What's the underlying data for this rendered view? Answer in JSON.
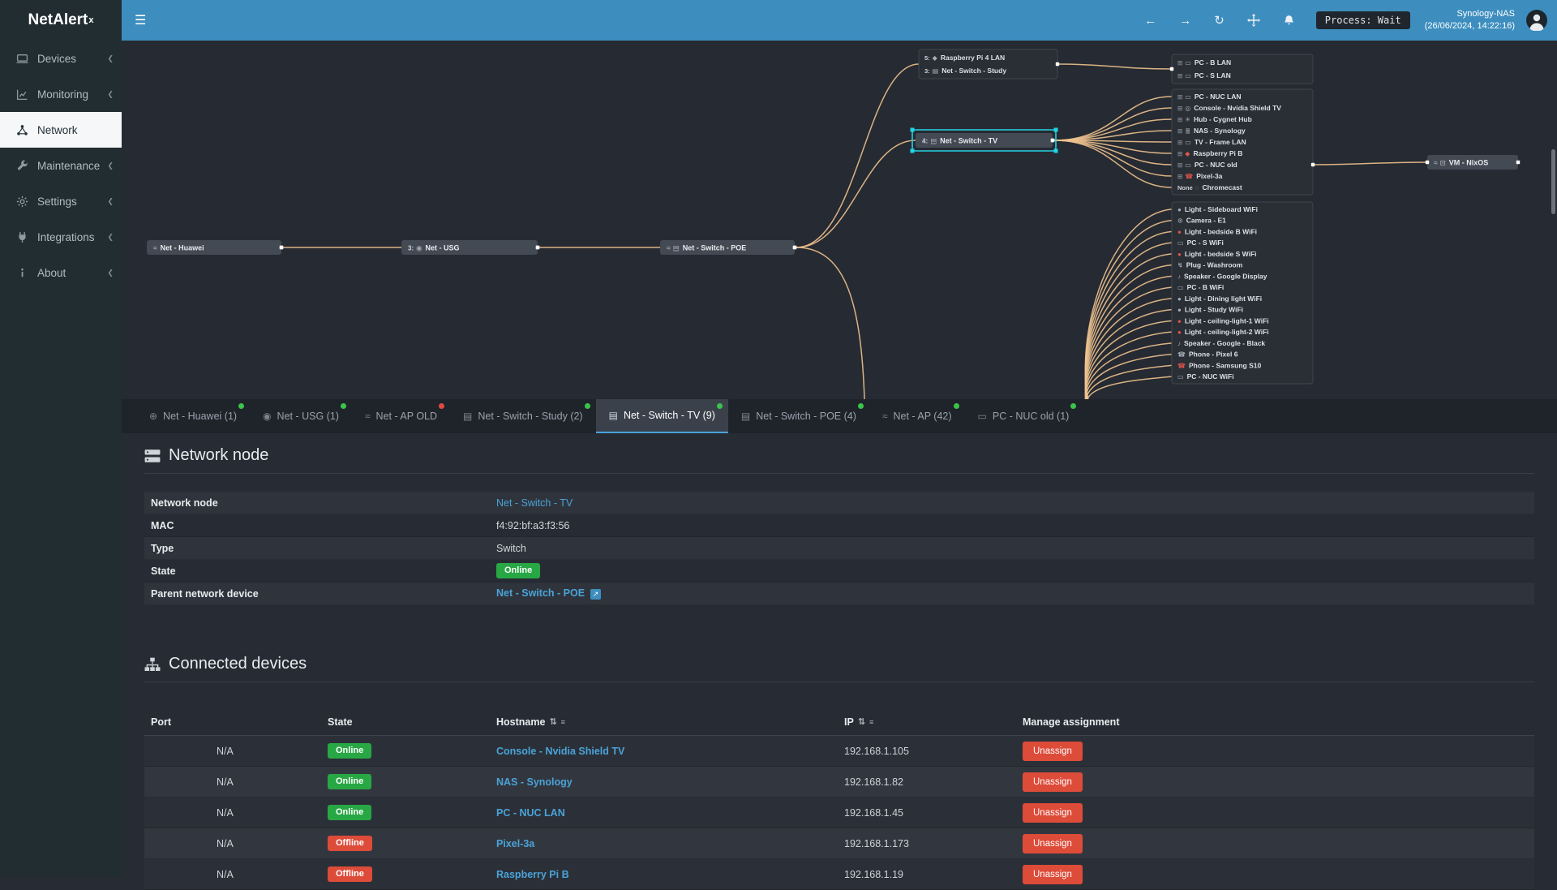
{
  "colors": {
    "accent": "#3d8ebf",
    "online": "#28a745",
    "offline": "#dd4b39",
    "link": "#4aa3d8",
    "edge": "#eec28e",
    "selection": "#22d3e5",
    "dot_green": "#3bc449",
    "dot_red": "#e04b3f"
  },
  "header": {
    "brand": "NetAlert",
    "brand_sup": "x",
    "menu_icon": "hamburger-icon",
    "nav_icons": [
      "arrow-left-icon",
      "arrow-right-icon",
      "refresh-icon",
      "move-icon",
      "bell-icon"
    ],
    "process_label": "Process: Wait",
    "host_name": "Synology-NAS",
    "host_time": "(26/06/2024, 14:22:16)",
    "avatar_icon": "user-avatar-icon"
  },
  "sidebar": {
    "items": [
      {
        "label": "Devices",
        "icon": "devices-icon"
      },
      {
        "label": "Monitoring",
        "icon": "monitoring-icon"
      },
      {
        "label": "Network",
        "icon": "network-icon",
        "active": true
      },
      {
        "label": "Maintenance",
        "icon": "maintenance-icon"
      },
      {
        "label": "Settings",
        "icon": "settings-icon"
      },
      {
        "label": "Integrations",
        "icon": "integrations-icon"
      },
      {
        "label": "About",
        "icon": "about-icon"
      }
    ]
  },
  "topology": {
    "nodes": [
      {
        "id": "huawei",
        "label": "Net - Huawei",
        "icon": "wifi-icon"
      },
      {
        "id": "usg",
        "label": "Net - USG",
        "prefix": "3:",
        "icon": "shield-icon"
      },
      {
        "id": "poe",
        "label": "Net - Switch - POE",
        "icon": "wifi-icon",
        "icon2": "switch-icon"
      },
      {
        "id": "tv",
        "label": "Net - Switch - TV",
        "prefix": "4:",
        "icon": "switch-icon",
        "selected": true
      },
      {
        "id": "nixos",
        "label": "VM - NixOS",
        "icon": "wifi-icon",
        "icon2": "vm-icon"
      }
    ],
    "boxes": [
      {
        "id": "study",
        "rows": [
          {
            "prefix": "5:",
            "icon": "pi-icon",
            "label": "Raspberry Pi 4 LAN"
          },
          {
            "prefix": "3:",
            "icon": "switch-icon",
            "label": "Net - Switch - Study"
          }
        ]
      },
      {
        "id": "pcs",
        "rows": [
          {
            "media": "lan-icon",
            "icon": "pc-icon",
            "label": "PC - B LAN"
          },
          {
            "media": "lan-icon",
            "icon": "pc-icon",
            "label": "PC - S LAN"
          }
        ]
      },
      {
        "id": "tvbox",
        "rows": [
          {
            "media": "lan-icon",
            "icon": "pc-icon",
            "label": "PC - NUC LAN"
          },
          {
            "media": "lan-icon",
            "icon": "console-icon",
            "label": "Console - Nvidia Shield TV"
          },
          {
            "media": "lan-icon",
            "icon": "hub-icon",
            "label": "Hub - Cygnet Hub"
          },
          {
            "media": "lan-icon",
            "icon": "nas-icon",
            "label": "NAS - Synology"
          },
          {
            "media": "lan-icon",
            "icon": "tv-icon",
            "label": "TV - Frame LAN"
          },
          {
            "media": "lan-icon",
            "icon": "pi-icon",
            "label": "Raspberry Pi B",
            "offline": true
          },
          {
            "media": "lan-icon",
            "icon": "pc-icon",
            "label": "PC - NUC old"
          },
          {
            "media": "lan-icon",
            "icon": "phone-icon",
            "label": "Pixel-3a",
            "offline": true
          },
          {
            "prefix": "None",
            "icon": "cast-icon",
            "label": "Chromecast"
          }
        ]
      },
      {
        "id": "wifibox",
        "rows": [
          {
            "icon": "bulb-icon",
            "label": "Light - Sideboard WiFi"
          },
          {
            "icon": "camera-icon",
            "label": "Camera - E1"
          },
          {
            "icon": "bulb-icon",
            "label": "Light - bedside B WiFi",
            "offline": true
          },
          {
            "icon": "pc-icon",
            "label": "PC - S WiFi"
          },
          {
            "icon": "bulb-icon",
            "label": "Light - bedside S WiFi",
            "offline": true
          },
          {
            "icon": "plug-icon",
            "label": "Plug - Washroom"
          },
          {
            "icon": "speaker-icon",
            "label": "Speaker - Google Display"
          },
          {
            "icon": "pc-icon",
            "label": "PC - B WiFi"
          },
          {
            "icon": "bulb-icon",
            "label": "Light - Dining light WiFi"
          },
          {
            "icon": "bulb-icon",
            "label": "Light - Study WiFi"
          },
          {
            "icon": "bulb-icon",
            "label": "Light - ceiling-light-1 WiFi",
            "offline": true
          },
          {
            "icon": "bulb-icon",
            "label": "Light - ceiling-light-2 WiFi",
            "offline": true
          },
          {
            "icon": "speaker-icon",
            "label": "Speaker - Google - Black"
          },
          {
            "icon": "phone-icon",
            "label": "Phone - Pixel 6"
          },
          {
            "icon": "phone-icon",
            "label": "Phone - Samsung S10",
            "offline": true
          },
          {
            "icon": "pc-icon",
            "label": "PC - NUC WiFi"
          }
        ]
      }
    ],
    "edges": [
      {
        "from": "huawei",
        "to": "usg"
      },
      {
        "from": "usg",
        "to": "poe"
      },
      {
        "from": "poe",
        "to": "study"
      },
      {
        "from": "poe",
        "to": "tv"
      },
      {
        "from": "poe",
        "to": "offmap-bottom"
      },
      {
        "from": "study",
        "to": "pcs"
      },
      {
        "from": "tv",
        "to": "tvbox",
        "fan": true
      },
      {
        "from": "offmap-bottom",
        "to": "wifibox",
        "fan": true
      },
      {
        "from": "tvbox",
        "to": "nixos",
        "fromRow": 6
      }
    ]
  },
  "tabs": [
    {
      "label": "Net - Huawei (1)",
      "icon": "globe-icon",
      "dot": "green"
    },
    {
      "label": "Net - USG (1)",
      "icon": "shield-icon",
      "dot": "green"
    },
    {
      "label": "Net - AP OLD",
      "icon": "wifi-icon",
      "dot": "red"
    },
    {
      "label": "Net - Switch - Study (2)",
      "icon": "switch-icon",
      "dot": "green"
    },
    {
      "label": "Net - Switch - TV (9)",
      "icon": "switch-icon",
      "dot": "green",
      "active": true
    },
    {
      "label": "Net - Switch - POE (4)",
      "icon": "switch-icon",
      "dot": "green"
    },
    {
      "label": "Net - AP (42)",
      "icon": "wifi-icon",
      "dot": "green"
    },
    {
      "label": "PC - NUC old (1)",
      "icon": "pc-icon",
      "dot": "green"
    }
  ],
  "network_node": {
    "title": "Network node",
    "icon": "server-icon",
    "fields": [
      {
        "label": "Network node",
        "value": "Net - Switch - TV",
        "kind": "link"
      },
      {
        "label": "MAC",
        "value": "f4:92:bf:a3:f3:56",
        "kind": "text"
      },
      {
        "label": "Type",
        "value": "Switch",
        "kind": "text"
      },
      {
        "label": "State",
        "value": "Online",
        "kind": "badge"
      },
      {
        "label": "Parent network device",
        "value": "Net - Switch - POE",
        "kind": "link-external"
      }
    ]
  },
  "connected_devices": {
    "title": "Connected devices",
    "icon": "sitemap-icon",
    "columns": [
      {
        "label": "Port"
      },
      {
        "label": "State"
      },
      {
        "label": "Hostname",
        "sortable": true
      },
      {
        "label": "IP",
        "sortable": true
      },
      {
        "label": "Manage assignment"
      }
    ],
    "unassign_label": "Unassign",
    "rows": [
      {
        "port": "N/A",
        "state": "Online",
        "hostname": "Console - Nvidia Shield TV",
        "ip": "192.168.1.105"
      },
      {
        "port": "N/A",
        "state": "Online",
        "hostname": "NAS - Synology",
        "ip": "192.168.1.82"
      },
      {
        "port": "N/A",
        "state": "Online",
        "hostname": "PC - NUC LAN",
        "ip": "192.168.1.45"
      },
      {
        "port": "N/A",
        "state": "Offline",
        "hostname": "Pixel-3a",
        "ip": "192.168.1.173"
      },
      {
        "port": "N/A",
        "state": "Offline",
        "hostname": "Raspberry Pi B",
        "ip": "192.168.1.19"
      }
    ]
  }
}
